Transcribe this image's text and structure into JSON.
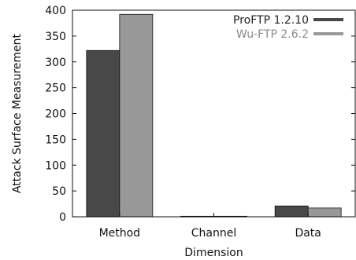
{
  "chart_data": {
    "type": "bar",
    "title": "",
    "xlabel": "Dimension",
    "ylabel": "Attack Surface Measurement",
    "categories": [
      "Method",
      "Channel",
      "Data"
    ],
    "series": [
      {
        "name": "ProFTP 1.2.10",
        "values": [
          322,
          1,
          21
        ],
        "color": "#484848"
      },
      {
        "name": "Wu-FTP 2.6.2",
        "values": [
          392,
          1,
          17
        ],
        "color": "#989898"
      }
    ],
    "ylim": [
      0,
      400
    ],
    "yticks": [
      0,
      50,
      100,
      150,
      200,
      250,
      300,
      350,
      400
    ],
    "legend_position": "top-right",
    "grid": false
  }
}
